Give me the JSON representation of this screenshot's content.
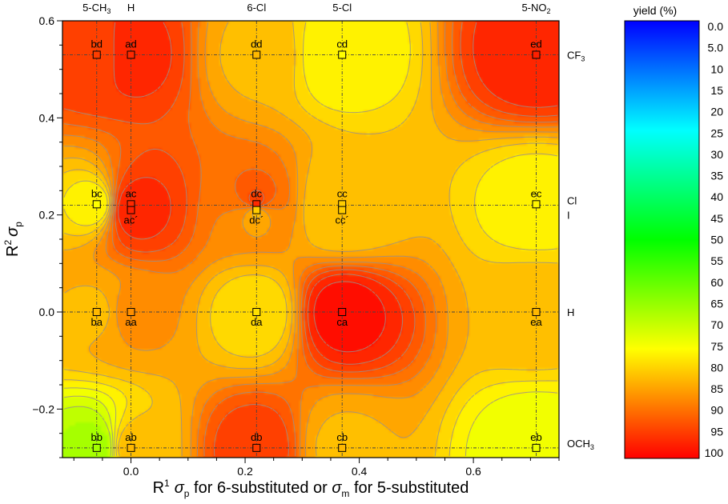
{
  "chart_data": {
    "type": "heatmap",
    "title": "",
    "xlabel": {
      "prefix": "R",
      "prefix_sup": "1",
      "s1": "σ",
      "s1_sub": "p",
      "mid": " for 6-substituted or ",
      "s2": "σ",
      "s2_sub": "m",
      "end": " for 5-substituted"
    },
    "ylabel": {
      "base": "R",
      "sup": "2",
      "sigma": "σ",
      "sub": "p"
    },
    "xlim": [
      -0.12,
      0.75
    ],
    "ylim": [
      -0.3,
      0.6
    ],
    "x_ticks": [
      {
        "v": 0.0,
        "label": "0.0"
      },
      {
        "v": 0.2,
        "label": "0.2"
      },
      {
        "v": 0.4,
        "label": "0.4"
      },
      {
        "v": 0.6,
        "label": "0.6"
      }
    ],
    "y_ticks": [
      {
        "v": -0.2,
        "label": "−0.2"
      },
      {
        "v": 0.0,
        "label": "0.0"
      },
      {
        "v": 0.2,
        "label": "0.2"
      },
      {
        "v": 0.4,
        "label": "0.4"
      },
      {
        "v": 0.6,
        "label": "0.6"
      }
    ],
    "top_labels": [
      {
        "x": -0.06,
        "text": "5-CH",
        "sub": "3"
      },
      {
        "x": 0.0,
        "text": "H",
        "sub": ""
      },
      {
        "x": 0.22,
        "text": "6-Cl",
        "sub": ""
      },
      {
        "x": 0.37,
        "text": "5-Cl",
        "sub": ""
      },
      {
        "x": 0.71,
        "text": "5-NO",
        "sub": "2"
      }
    ],
    "right_labels": [
      {
        "y": 0.53,
        "text": "CF",
        "sub": "3"
      },
      {
        "y": 0.23,
        "text": "Cl",
        "sub": ""
      },
      {
        "y": 0.2,
        "text": "I",
        "sub": ""
      },
      {
        "y": 0.0,
        "text": "H",
        "sub": ""
      },
      {
        "y": -0.27,
        "text": "OCH",
        "sub": "3"
      }
    ],
    "ref_x": [
      -0.06,
      0.0,
      0.22,
      0.37,
      0.71
    ],
    "ref_y": [
      0.53,
      0.22,
      0.0,
      -0.28
    ],
    "points": [
      {
        "label": "bd",
        "x": -0.06,
        "y": 0.53,
        "yield": 94,
        "pos": "above"
      },
      {
        "label": "ad",
        "x": 0.0,
        "y": 0.53,
        "yield": 96,
        "pos": "above"
      },
      {
        "label": "dd",
        "x": 0.22,
        "y": 0.53,
        "yield": 82,
        "pos": "above"
      },
      {
        "label": "cd",
        "x": 0.37,
        "y": 0.53,
        "yield": 75,
        "pos": "above"
      },
      {
        "label": "ed",
        "x": 0.71,
        "y": 0.53,
        "yield": 97,
        "pos": "above"
      },
      {
        "label": "bc",
        "x": -0.06,
        "y": 0.222,
        "yield": 75,
        "pos": "above"
      },
      {
        "label": "ac",
        "x": 0.0,
        "y": 0.222,
        "yield": 96,
        "pos": "above"
      },
      {
        "label": "dc",
        "x": 0.22,
        "y": 0.222,
        "yield": 96,
        "pos": "above"
      },
      {
        "label": "cc",
        "x": 0.37,
        "y": 0.222,
        "yield": 80,
        "pos": "above"
      },
      {
        "label": "ec",
        "x": 0.71,
        "y": 0.222,
        "yield": 76,
        "pos": "above"
      },
      {
        "label": "ac´",
        "x": 0.0,
        "y": 0.21,
        "yield": 97,
        "pos": "below"
      },
      {
        "label": "dc´",
        "x": 0.22,
        "y": 0.21,
        "yield": 80,
        "pos": "below"
      },
      {
        "label": "cc´",
        "x": 0.37,
        "y": 0.21,
        "yield": 80,
        "pos": "below"
      },
      {
        "label": "ba",
        "x": -0.06,
        "y": 0.0,
        "yield": 82,
        "pos": "below"
      },
      {
        "label": "aa",
        "x": 0.0,
        "y": 0.0,
        "yield": 86,
        "pos": "below"
      },
      {
        "label": "da",
        "x": 0.22,
        "y": 0.0,
        "yield": 78,
        "pos": "below"
      },
      {
        "label": "ca",
        "x": 0.37,
        "y": 0.0,
        "yield": 99,
        "pos": "below"
      },
      {
        "label": "ea",
        "x": 0.71,
        "y": 0.0,
        "yield": 82,
        "pos": "below"
      },
      {
        "label": "bb",
        "x": -0.06,
        "y": -0.28,
        "yield": 66,
        "pos": "above"
      },
      {
        "label": "ab",
        "x": 0.0,
        "y": -0.28,
        "yield": 82,
        "pos": "above"
      },
      {
        "label": "db",
        "x": 0.22,
        "y": -0.28,
        "yield": 94,
        "pos": "above"
      },
      {
        "label": "cb",
        "x": 0.37,
        "y": -0.28,
        "yield": 82,
        "pos": "above"
      },
      {
        "label": "eb",
        "x": 0.71,
        "y": -0.28,
        "yield": 73,
        "pos": "above"
      }
    ],
    "colorbar": {
      "title": "yield (%)",
      "min": 0,
      "max": 100,
      "labels": [
        "0.0",
        "5.0",
        "10",
        "15",
        "20",
        "25",
        "30",
        "35",
        "40",
        "45",
        "50",
        "55",
        "60",
        "65",
        "70",
        "75",
        "80",
        "85",
        "90",
        "95",
        "100"
      ]
    }
  }
}
